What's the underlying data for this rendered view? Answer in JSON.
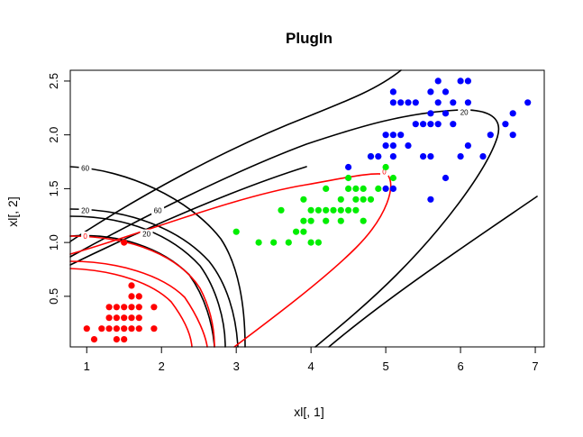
{
  "chart_data": {
    "type": "scatter",
    "title": "PlugIn",
    "xlabel": "xl[, 1]",
    "ylabel": "xl[, 2]",
    "xlim": [
      0.78,
      7.12
    ],
    "ylim": [
      0.03,
      2.6
    ],
    "xticks": [
      1,
      2,
      3,
      4,
      5,
      6,
      7
    ],
    "xtick_labels": [
      "1",
      "2",
      "3",
      "4",
      "5",
      "6",
      "7"
    ],
    "yticks": [
      0.5,
      1.0,
      1.5,
      2.0,
      2.5
    ],
    "ytick_labels": [
      "0.5",
      "1.0",
      "1.5",
      "2.0",
      "2.5"
    ],
    "grid": false,
    "series": [
      {
        "color": "#ff0000",
        "points": [
          [
            1.0,
            0.2
          ],
          [
            1.1,
            0.1
          ],
          [
            1.2,
            0.2
          ],
          [
            1.3,
            0.2
          ],
          [
            1.3,
            0.3
          ],
          [
            1.3,
            0.4
          ],
          [
            1.4,
            0.1
          ],
          [
            1.4,
            0.2
          ],
          [
            1.4,
            0.3
          ],
          [
            1.4,
            0.4
          ],
          [
            1.5,
            0.1
          ],
          [
            1.5,
            0.2
          ],
          [
            1.5,
            0.3
          ],
          [
            1.5,
            0.4
          ],
          [
            1.6,
            0.2
          ],
          [
            1.6,
            0.3
          ],
          [
            1.6,
            0.4
          ],
          [
            1.6,
            0.5
          ],
          [
            1.6,
            0.6
          ],
          [
            1.7,
            0.2
          ],
          [
            1.7,
            0.3
          ],
          [
            1.7,
            0.4
          ],
          [
            1.7,
            0.5
          ],
          [
            1.9,
            0.2
          ],
          [
            1.9,
            0.4
          ],
          [
            1.5,
            1.0
          ]
        ]
      },
      {
        "color": "#00ee00",
        "points": [
          [
            3.0,
            1.1
          ],
          [
            3.3,
            1.0
          ],
          [
            3.5,
            1.0
          ],
          [
            3.6,
            1.3
          ],
          [
            3.7,
            1.0
          ],
          [
            3.8,
            1.1
          ],
          [
            3.9,
            1.1
          ],
          [
            3.9,
            1.2
          ],
          [
            3.9,
            1.4
          ],
          [
            4.0,
            1.0
          ],
          [
            4.0,
            1.2
          ],
          [
            4.0,
            1.3
          ],
          [
            4.1,
            1.0
          ],
          [
            4.1,
            1.3
          ],
          [
            4.2,
            1.2
          ],
          [
            4.2,
            1.3
          ],
          [
            4.2,
            1.5
          ],
          [
            4.3,
            1.3
          ],
          [
            4.4,
            1.2
          ],
          [
            4.4,
            1.3
          ],
          [
            4.4,
            1.4
          ],
          [
            4.5,
            1.3
          ],
          [
            4.5,
            1.5
          ],
          [
            4.5,
            1.6
          ],
          [
            4.6,
            1.3
          ],
          [
            4.6,
            1.4
          ],
          [
            4.6,
            1.5
          ],
          [
            4.7,
            1.2
          ],
          [
            4.7,
            1.4
          ],
          [
            4.7,
            1.5
          ],
          [
            4.8,
            1.4
          ],
          [
            4.8,
            1.8
          ],
          [
            4.9,
            1.5
          ],
          [
            5.0,
            1.7
          ],
          [
            5.1,
            1.6
          ]
        ]
      },
      {
        "color": "#0000ff",
        "points": [
          [
            4.5,
            1.7
          ],
          [
            4.8,
            1.8
          ],
          [
            4.9,
            1.8
          ],
          [
            5.0,
            1.5
          ],
          [
            5.0,
            1.9
          ],
          [
            5.0,
            2.0
          ],
          [
            5.1,
            1.5
          ],
          [
            5.1,
            1.8
          ],
          [
            5.1,
            1.9
          ],
          [
            5.1,
            2.0
          ],
          [
            5.1,
            2.3
          ],
          [
            5.1,
            2.4
          ],
          [
            5.2,
            2.0
          ],
          [
            5.2,
            2.3
          ],
          [
            5.3,
            1.9
          ],
          [
            5.3,
            2.3
          ],
          [
            5.4,
            2.1
          ],
          [
            5.4,
            2.3
          ],
          [
            5.5,
            1.8
          ],
          [
            5.5,
            2.1
          ],
          [
            5.6,
            1.4
          ],
          [
            5.6,
            1.8
          ],
          [
            5.6,
            2.1
          ],
          [
            5.6,
            2.2
          ],
          [
            5.6,
            2.4
          ],
          [
            5.7,
            2.1
          ],
          [
            5.7,
            2.3
          ],
          [
            5.7,
            2.5
          ],
          [
            5.8,
            1.6
          ],
          [
            5.8,
            2.2
          ],
          [
            5.8,
            2.4
          ],
          [
            5.9,
            2.1
          ],
          [
            5.9,
            2.3
          ],
          [
            6.0,
            1.8
          ],
          [
            6.0,
            2.5
          ],
          [
            6.1,
            1.9
          ],
          [
            6.1,
            2.3
          ],
          [
            6.1,
            2.5
          ],
          [
            6.3,
            1.8
          ],
          [
            6.4,
            2.0
          ],
          [
            6.6,
            2.1
          ],
          [
            6.7,
            2.0
          ],
          [
            6.7,
            2.2
          ],
          [
            6.9,
            2.3
          ]
        ]
      }
    ],
    "contour_labels": [
      {
        "text": "60",
        "x": 0.98,
        "y": 1.69,
        "color": "#000000"
      },
      {
        "text": "20",
        "x": 0.98,
        "y": 1.3,
        "color": "#000000"
      },
      {
        "text": "60",
        "x": 1.95,
        "y": 1.3,
        "color": "#000000"
      },
      {
        "text": "0",
        "x": 0.98,
        "y": 1.06,
        "color": "#ff0000"
      },
      {
        "text": "20",
        "x": 1.8,
        "y": 1.08,
        "color": "#000000"
      },
      {
        "text": "0",
        "x": 4.98,
        "y": 1.66,
        "color": "#ff0000"
      },
      {
        "text": "20",
        "x": 6.05,
        "y": 2.21,
        "color": "#000000"
      }
    ]
  }
}
